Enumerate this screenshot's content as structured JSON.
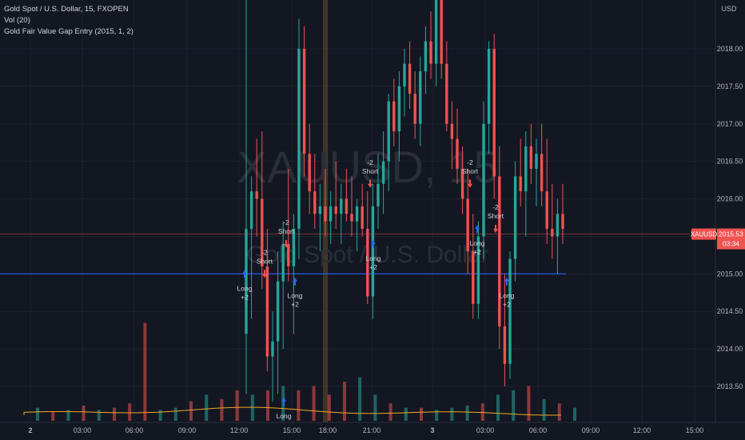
{
  "legend": {
    "symbol_line": "Gold Spot / U.S. Dollar, 15, FXOPEN",
    "volume_line": "Vol (20)",
    "indicator_line": "Gold Fair Value Gap Entry (2015, 1, 2)"
  },
  "watermark": {
    "symbol": "XAUUSD, 15",
    "name": "Gold Spot / U.S. Dollar"
  },
  "price_axis": {
    "currency": "USD",
    "ticks": [
      "2018.00",
      "2017.50",
      "2017.00",
      "2016.50",
      "2016.00",
      "2015.50",
      "2015.00",
      "2014.50",
      "2014.00",
      "2013.50"
    ]
  },
  "time_axis": {
    "ticks": [
      "2",
      "03:00",
      "06:00",
      "09:00",
      "12:00",
      "15:00",
      "18:00",
      "21:00",
      "3",
      "03:00",
      "06:00",
      "09:00",
      "12:00",
      "15:00"
    ]
  },
  "current_price": {
    "symbol": "XAUUSD",
    "price": "2015.53",
    "countdown": "03:34"
  },
  "signal_labels": {
    "long_top": "Long",
    "long_bottom": "+2",
    "short_top": "-2",
    "short_bottom": "Short"
  },
  "colors": {
    "background": "#131722",
    "up": "#26a69a",
    "down": "#ef5350",
    "entry_line": "#2962ff",
    "arrow": "#2962ff",
    "volume_ma": "#f5a623",
    "session": "#8c6d2c"
  },
  "chart_data": {
    "type": "candlestick",
    "title": "Gold Spot / U.S. Dollar, 15, FXOPEN",
    "ylim": [
      2012.7,
      2019.7
    ],
    "entry_level": 2015.0,
    "current_price": 2015.53,
    "candles": [
      {
        "t": "12:00",
        "o": 2014.2,
        "h": 2019.7,
        "l": 2013.4,
        "c": 2015.6
      },
      {
        "t": "12:15",
        "o": 2015.6,
        "h": 2016.3,
        "l": 2014.4,
        "c": 2016.1
      },
      {
        "t": "12:30",
        "o": 2016.1,
        "h": 2016.8,
        "l": 2015.5,
        "c": 2016.0
      },
      {
        "t": "12:45",
        "o": 2016.0,
        "h": 2016.9,
        "l": 2014.8,
        "c": 2015.1
      },
      {
        "t": "13:00",
        "o": 2015.1,
        "h": 2015.6,
        "l": 2013.7,
        "c": 2013.9
      },
      {
        "t": "13:15",
        "o": 2013.9,
        "h": 2014.5,
        "l": 2013.3,
        "c": 2014.1
      },
      {
        "t": "13:30",
        "o": 2014.1,
        "h": 2015.3,
        "l": 2013.4,
        "c": 2014.9
      },
      {
        "t": "13:45",
        "o": 2014.9,
        "h": 2015.7,
        "l": 2014.0,
        "c": 2015.4
      },
      {
        "t": "14:00",
        "o": 2015.4,
        "h": 2016.4,
        "l": 2014.9,
        "c": 2015.1
      },
      {
        "t": "14:15",
        "o": 2015.1,
        "h": 2015.8,
        "l": 2014.2,
        "c": 2015.6
      },
      {
        "t": "14:30",
        "o": 2015.6,
        "h": 2018.4,
        "l": 2015.2,
        "c": 2018.0
      },
      {
        "t": "14:45",
        "o": 2018.0,
        "h": 2018.3,
        "l": 2016.3,
        "c": 2016.6
      },
      {
        "t": "15:00",
        "o": 2016.6,
        "h": 2017.0,
        "l": 2015.8,
        "c": 2016.1
      },
      {
        "t": "15:15",
        "o": 2016.1,
        "h": 2016.6,
        "l": 2015.6,
        "c": 2015.8
      },
      {
        "t": "15:30",
        "o": 2015.8,
        "h": 2016.2,
        "l": 2015.3,
        "c": 2015.9
      },
      {
        "t": "15:45",
        "o": 2015.9,
        "h": 2016.4,
        "l": 2015.5,
        "c": 2015.7
      },
      {
        "t": "16:00",
        "o": 2015.7,
        "h": 2016.1,
        "l": 2015.4,
        "c": 2015.9
      },
      {
        "t": "16:15",
        "o": 2015.9,
        "h": 2016.5,
        "l": 2015.6,
        "c": 2015.8
      },
      {
        "t": "16:30",
        "o": 2015.8,
        "h": 2016.2,
        "l": 2015.4,
        "c": 2016.0
      },
      {
        "t": "16:45",
        "o": 2016.0,
        "h": 2016.4,
        "l": 2015.7,
        "c": 2015.8
      },
      {
        "t": "17:00",
        "o": 2015.8,
        "h": 2016.3,
        "l": 2015.5,
        "c": 2015.7
      },
      {
        "t": "17:15",
        "o": 2015.7,
        "h": 2016.0,
        "l": 2015.3,
        "c": 2015.9
      },
      {
        "t": "17:30",
        "o": 2015.9,
        "h": 2016.2,
        "l": 2015.5,
        "c": 2015.6
      },
      {
        "t": "17:45",
        "o": 2015.6,
        "h": 2016.1,
        "l": 2014.6,
        "c": 2014.7
      },
      {
        "t": "18:00",
        "o": 2014.7,
        "h": 2016.2,
        "l": 2014.4,
        "c": 2015.9
      },
      {
        "t": "18:15",
        "o": 2015.9,
        "h": 2016.6,
        "l": 2015.6,
        "c": 2016.2
      },
      {
        "t": "18:30",
        "o": 2016.2,
        "h": 2016.9,
        "l": 2015.8,
        "c": 2016.5
      },
      {
        "t": "18:45",
        "o": 2016.5,
        "h": 2017.4,
        "l": 2016.1,
        "c": 2017.3
      },
      {
        "t": "19:00",
        "o": 2017.3,
        "h": 2017.6,
        "l": 2016.7,
        "c": 2016.9
      },
      {
        "t": "19:15",
        "o": 2016.9,
        "h": 2017.7,
        "l": 2016.5,
        "c": 2017.5
      },
      {
        "t": "19:30",
        "o": 2017.5,
        "h": 2018.0,
        "l": 2017.1,
        "c": 2017.8
      },
      {
        "t": "19:45",
        "o": 2017.8,
        "h": 2018.1,
        "l": 2017.2,
        "c": 2017.4
      },
      {
        "t": "20:00",
        "o": 2017.4,
        "h": 2017.7,
        "l": 2016.8,
        "c": 2017.0
      },
      {
        "t": "20:15",
        "o": 2017.0,
        "h": 2017.9,
        "l": 2016.7,
        "c": 2017.7
      },
      {
        "t": "20:30",
        "o": 2017.7,
        "h": 2018.3,
        "l": 2017.4,
        "c": 2018.1
      },
      {
        "t": "20:45",
        "o": 2018.1,
        "h": 2018.5,
        "l": 2017.6,
        "c": 2017.8
      },
      {
        "t": "21:00",
        "o": 2017.8,
        "h": 2019.6,
        "l": 2017.5,
        "c": 2019.3
      },
      {
        "t": "21:15",
        "o": 2019.3,
        "h": 2019.6,
        "l": 2017.6,
        "c": 2017.8
      },
      {
        "t": "21:30",
        "o": 2017.8,
        "h": 2018.1,
        "l": 2016.9,
        "c": 2017.0
      },
      {
        "t": "21:45",
        "o": 2017.0,
        "h": 2017.3,
        "l": 2016.4,
        "c": 2016.8
      },
      {
        "t": "22:00",
        "o": 2016.8,
        "h": 2017.2,
        "l": 2016.2,
        "c": 2016.4
      },
      {
        "t": "22:15",
        "o": 2016.4,
        "h": 2016.7,
        "l": 2015.8,
        "c": 2016.0
      },
      {
        "t": "22:30",
        "o": 2016.0,
        "h": 2016.4,
        "l": 2015.0,
        "c": 2015.3
      },
      {
        "t": "22:45",
        "o": 2015.3,
        "h": 2015.8,
        "l": 2014.4,
        "c": 2014.6
      },
      {
        "t": "23:00",
        "o": 2014.6,
        "h": 2015.7,
        "l": 2014.4,
        "c": 2015.5
      },
      {
        "t": "23:15",
        "o": 2015.5,
        "h": 2017.3,
        "l": 2015.2,
        "c": 2017.0
      },
      {
        "t": "23:30",
        "o": 2017.0,
        "h": 2018.1,
        "l": 2016.6,
        "c": 2018.0
      },
      {
        "t": "23:45",
        "o": 2018.0,
        "h": 2018.2,
        "l": 2016.0,
        "c": 2016.3
      },
      {
        "t": "00:00",
        "o": 2016.3,
        "h": 2016.7,
        "l": 2014.0,
        "c": 2014.3
      },
      {
        "t": "00:15",
        "o": 2014.3,
        "h": 2015.0,
        "l": 2013.5,
        "c": 2013.8
      },
      {
        "t": "00:30",
        "o": 2013.8,
        "h": 2015.3,
        "l": 2013.6,
        "c": 2015.2
      },
      {
        "t": "00:45",
        "o": 2015.2,
        "h": 2016.5,
        "l": 2014.9,
        "c": 2016.3
      },
      {
        "t": "01:00",
        "o": 2016.3,
        "h": 2016.8,
        "l": 2015.9,
        "c": 2016.1
      },
      {
        "t": "01:15",
        "o": 2016.1,
        "h": 2016.9,
        "l": 2015.5,
        "c": 2016.7
      },
      {
        "t": "01:30",
        "o": 2016.7,
        "h": 2017.0,
        "l": 2016.2,
        "c": 2016.4
      },
      {
        "t": "01:45",
        "o": 2016.4,
        "h": 2016.8,
        "l": 2015.9,
        "c": 2016.6
      },
      {
        "t": "02:00",
        "o": 2016.6,
        "h": 2017.0,
        "l": 2015.9,
        "c": 2016.1
      },
      {
        "t": "02:15",
        "o": 2016.1,
        "h": 2016.8,
        "l": 2015.4,
        "c": 2015.6
      },
      {
        "t": "02:30",
        "o": 2015.6,
        "h": 2016.2,
        "l": 2015.2,
        "c": 2015.5
      },
      {
        "t": "02:45",
        "o": 2015.5,
        "h": 2016.0,
        "l": 2015.0,
        "c": 2015.8
      },
      {
        "t": "03:00",
        "o": 2015.8,
        "h": 2016.2,
        "l": 2015.4,
        "c": 2015.6
      }
    ],
    "volume": [
      {
        "t": "00:00",
        "v": 6,
        "dir": "up"
      },
      {
        "t": "00:45",
        "v": 4,
        "dir": "down"
      },
      {
        "t": "01:30",
        "v": 5,
        "dir": "up"
      },
      {
        "t": "02:15",
        "v": 7,
        "dir": "down"
      },
      {
        "t": "03:00",
        "v": 5,
        "dir": "up"
      },
      {
        "t": "03:45",
        "v": 6,
        "dir": "down"
      },
      {
        "t": "04:30",
        "v": 8,
        "dir": "down"
      },
      {
        "t": "05:15",
        "v": 45,
        "dir": "down"
      },
      {
        "t": "06:00",
        "v": 5,
        "dir": "up"
      },
      {
        "t": "06:45",
        "v": 6,
        "dir": "up"
      },
      {
        "t": "07:30",
        "v": 9,
        "dir": "down"
      },
      {
        "t": "08:15",
        "v": 12,
        "dir": "up"
      },
      {
        "t": "09:00",
        "v": 10,
        "dir": "down"
      },
      {
        "t": "09:45",
        "v": 14,
        "dir": "down"
      },
      {
        "t": "10:30",
        "v": 12,
        "dir": "up"
      },
      {
        "t": "11:15",
        "v": 14,
        "dir": "down"
      },
      {
        "t": "12:00",
        "v": 16,
        "dir": "up"
      },
      {
        "t": "12:30",
        "v": 14,
        "dir": "down"
      },
      {
        "t": "13:00",
        "v": 16,
        "dir": "down"
      },
      {
        "t": "13:30",
        "v": 12,
        "dir": "down"
      },
      {
        "t": "14:00",
        "v": 18,
        "dir": "down"
      },
      {
        "t": "14:30",
        "v": 20,
        "dir": "up"
      },
      {
        "t": "15:00",
        "v": 12,
        "dir": "up"
      },
      {
        "t": "16:00",
        "v": 8,
        "dir": "down"
      },
      {
        "t": "17:00",
        "v": 6,
        "dir": "up"
      },
      {
        "t": "18:00",
        "v": 6,
        "dir": "down"
      },
      {
        "t": "19:00",
        "v": 5,
        "dir": "up"
      },
      {
        "t": "20:00",
        "v": 6,
        "dir": "up"
      },
      {
        "t": "21:00",
        "v": 7,
        "dir": "up"
      },
      {
        "t": "22:00",
        "v": 8,
        "dir": "down"
      },
      {
        "t": "23:00",
        "v": 12,
        "dir": "up"
      },
      {
        "t": "23:30",
        "v": 14,
        "dir": "up"
      },
      {
        "t": "00:00",
        "v": 16,
        "dir": "down"
      },
      {
        "t": "01:00",
        "v": 10,
        "dir": "up"
      },
      {
        "t": "02:00",
        "v": 8,
        "dir": "down"
      },
      {
        "t": "03:00",
        "v": 6,
        "dir": "up"
      }
    ],
    "signals": [
      {
        "type": "long",
        "t": "12:00",
        "price": 2015.0
      },
      {
        "type": "short",
        "t": "13:15",
        "price": 2015.0
      },
      {
        "type": "long",
        "t": "14:00",
        "price": 2014.9
      },
      {
        "type": "short",
        "t": "13:45",
        "price": 2015.4
      },
      {
        "type": "long",
        "t": "13:45",
        "price": 2013.3
      },
      {
        "type": "short",
        "t": "18:15",
        "price": 2016.2
      },
      {
        "type": "long",
        "t": "18:15",
        "price": 2015.4
      },
      {
        "type": "short",
        "t": "00:30",
        "price": 2016.2
      },
      {
        "type": "long",
        "t": "00:45",
        "price": 2015.6
      },
      {
        "type": "short",
        "t": "01:30",
        "price": 2015.6
      },
      {
        "type": "long",
        "t": "02:00",
        "price": 2014.9
      }
    ]
  }
}
